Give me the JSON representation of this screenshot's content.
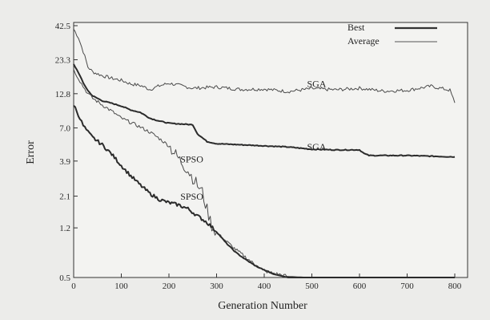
{
  "chart_data": {
    "type": "line",
    "title": "",
    "xlabel": "Generation Number",
    "ylabel": "Error",
    "xlim": [
      0,
      800
    ],
    "ylim": [
      0.5,
      42.5
    ],
    "y_scale": "log",
    "x_ticks": [
      0,
      100,
      200,
      300,
      400,
      500,
      600,
      700,
      800
    ],
    "y_ticks": [
      0.5,
      1.2,
      2.1,
      3.9,
      7.0,
      12.8,
      23.3,
      42.5
    ],
    "grid": false,
    "legend": {
      "placement": "top-right",
      "entries": [
        {
          "label": "Best",
          "style": "thick"
        },
        {
          "label": "Average",
          "style": "thin"
        }
      ]
    },
    "annotations": [
      {
        "text": "SGA",
        "x": 510,
        "y": 14.4
      },
      {
        "text": "SGA",
        "x": 510,
        "y": 4.75
      },
      {
        "text": "SPSO",
        "x": 248,
        "y": 3.8
      },
      {
        "text": "SPSO",
        "x": 248,
        "y": 1.97
      }
    ],
    "series": [
      {
        "name": "SGA",
        "label_ref": "Average",
        "style": "thin",
        "x": [
          0,
          10,
          20,
          30,
          40,
          60,
          80,
          100,
          120,
          140,
          160,
          180,
          200,
          250,
          300,
          350,
          400,
          450,
          500,
          550,
          600,
          650,
          700,
          750,
          790,
          800
        ],
        "y": [
          40.0,
          34.5,
          27.0,
          20.5,
          18.8,
          17.6,
          16.8,
          16.2,
          15.2,
          14.8,
          13.8,
          14.7,
          15.4,
          14.1,
          14.4,
          13.8,
          13.9,
          13.3,
          14.0,
          13.7,
          14.1,
          13.4,
          13.6,
          14.6,
          13.6,
          10.9
        ]
      },
      {
        "name": "SGA",
        "label_ref": "Best",
        "style": "thick",
        "x": [
          0,
          10,
          20,
          30,
          40,
          60,
          80,
          100,
          120,
          140,
          160,
          180,
          200,
          250,
          260,
          280,
          300,
          350,
          400,
          450,
          500,
          550,
          600,
          610,
          620,
          650,
          700,
          750,
          800
        ],
        "y": [
          21.5,
          18.6,
          15.5,
          13.5,
          12.3,
          11.3,
          10.8,
          10.3,
          9.6,
          9.2,
          8.3,
          7.9,
          7.6,
          7.4,
          6.3,
          5.5,
          5.3,
          5.2,
          5.1,
          5.0,
          4.8,
          4.75,
          4.75,
          4.45,
          4.3,
          4.3,
          4.3,
          4.25,
          4.2
        ]
      },
      {
        "name": "SPSO",
        "label_ref": "Average",
        "style": "thin",
        "x": [
          0,
          10,
          20,
          30,
          40,
          60,
          80,
          100,
          120,
          140,
          160,
          180,
          200,
          220,
          240,
          250,
          260,
          270,
          280,
          290,
          300,
          320,
          340,
          360,
          380,
          400,
          450,
          500,
          600,
          700,
          800
        ],
        "y": [
          19.5,
          16.8,
          14.5,
          12.8,
          11.8,
          10.5,
          9.4,
          8.3,
          7.7,
          7.1,
          6.5,
          5.8,
          5.1,
          4.1,
          3.3,
          2.9,
          2.55,
          2.25,
          1.65,
          1.25,
          1.1,
          0.95,
          0.82,
          0.72,
          0.63,
          0.56,
          0.51,
          0.5,
          0.5,
          0.5,
          0.5
        ]
      },
      {
        "name": "SPSO",
        "label_ref": "Best",
        "style": "thick",
        "x": [
          0,
          10,
          20,
          30,
          40,
          60,
          80,
          100,
          120,
          140,
          160,
          180,
          200,
          220,
          240,
          260,
          280,
          300,
          320,
          340,
          360,
          380,
          400,
          420,
          440,
          450,
          500,
          600,
          700,
          800
        ],
        "y": [
          10.6,
          8.8,
          7.3,
          6.5,
          5.9,
          5.2,
          4.4,
          3.6,
          3.0,
          2.55,
          2.2,
          1.98,
          1.87,
          1.8,
          1.68,
          1.48,
          1.32,
          1.12,
          0.92,
          0.78,
          0.69,
          0.62,
          0.57,
          0.53,
          0.51,
          0.5,
          0.5,
          0.5,
          0.5,
          0.5
        ]
      }
    ]
  }
}
